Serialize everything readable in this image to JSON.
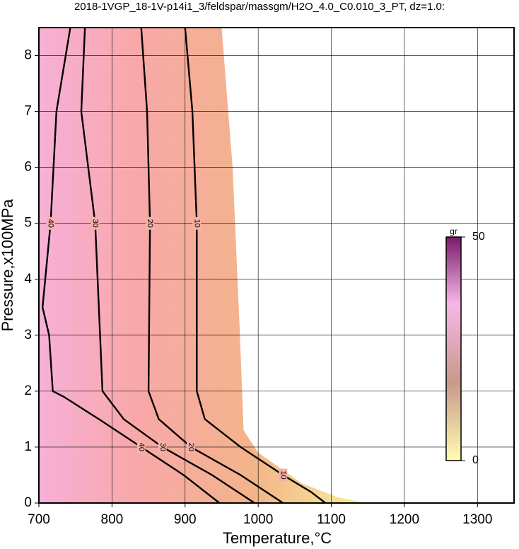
{
  "chart_data": {
    "type": "contour",
    "title": "2018-1VGP_18-1V-p14i1_3/feldspar/massgm/H2O_4.0_C0.010_3_PT, dz=1.0:",
    "x_label": "Temperature,°C",
    "y_label": "Pressure,x100MPa",
    "xlim": [
      700,
      1350
    ],
    "ylim": [
      0,
      8.5
    ],
    "xticks": [
      700,
      800,
      900,
      1000,
      1100,
      1200,
      1300
    ],
    "yticks": [
      0,
      1,
      2,
      3,
      4,
      5,
      6,
      7,
      8
    ],
    "grid": true,
    "domain": {
      "x": [
        700,
        950,
        965,
        975,
        980,
        990,
        1000,
        1060,
        1110,
        1150,
        700
      ],
      "y": [
        8.5,
        8.5,
        6,
        3,
        1.3,
        1.1,
        0.9,
        0.35,
        0.1,
        0,
        0
      ]
    },
    "contours": [
      {
        "level": 10,
        "x": [
          900,
          910,
          916,
          916,
          927,
          976,
          1034,
          1072,
          1092
        ],
        "y": [
          8.5,
          7,
          5,
          2,
          1.5,
          1,
          0.5,
          0.2,
          0
        ]
      },
      {
        "level": 20,
        "x": [
          840,
          848,
          852,
          850,
          864,
          908,
          976,
          1034
        ],
        "y": [
          8.5,
          7,
          5,
          2,
          1.5,
          1,
          0.5,
          0
        ]
      },
      {
        "level": 30,
        "x": [
          763,
          758,
          777,
          787,
          816,
          869,
          937,
          995
        ],
        "y": [
          8.5,
          7,
          5,
          2,
          1.5,
          1,
          0.5,
          0
        ]
      },
      {
        "level": 40,
        "x": [
          743,
          724,
          716,
          705,
          714,
          719,
          734,
          782,
          840,
          898,
          947
        ],
        "y": [
          8.5,
          7,
          5,
          3.5,
          3,
          2,
          1.9,
          1.5,
          1,
          0.5,
          0
        ]
      }
    ],
    "colorbar": {
      "label": "gr",
      "lim": [
        0,
        50
      ],
      "ticks": [
        0,
        50
      ]
    }
  }
}
